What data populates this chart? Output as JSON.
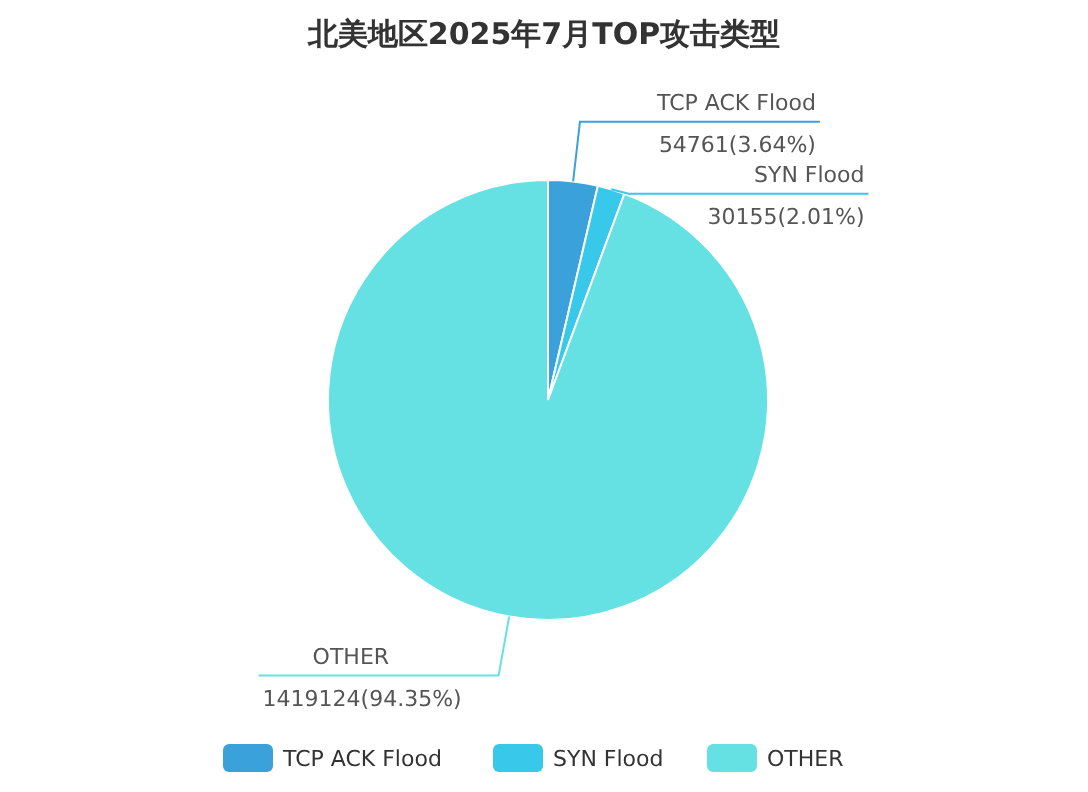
{
  "chart_data": {
    "type": "pie",
    "title": "北美地区2025年7月TOP攻击类型",
    "categories": [
      "TCP ACK Flood",
      "SYN Flood",
      "OTHER"
    ],
    "values": [
      54761,
      30155,
      1419124
    ],
    "colors": [
      "#3ba1da",
      "#37c8ea",
      "#66e1e3"
    ],
    "value_labels": [
      "54761(3.64%)",
      "30155(2.01%)",
      "1419124(94.35%)"
    ],
    "legend": "bottom"
  }
}
